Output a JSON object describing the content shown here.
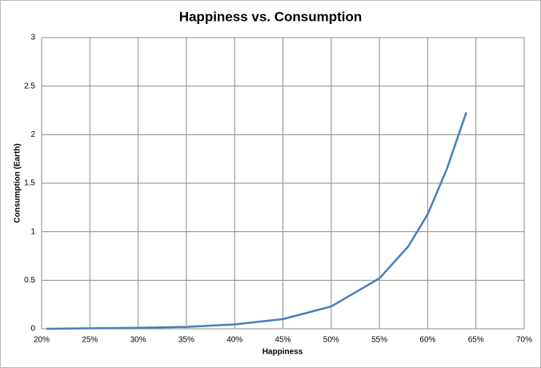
{
  "chart_data": {
    "type": "line",
    "title": "Happiness vs. Consumption",
    "x_label": "Happiness",
    "y_label": "Consumption (Earth)",
    "x": [
      20.5,
      25,
      30,
      35,
      40,
      45,
      50,
      55,
      58,
      60,
      62,
      64
    ],
    "series": [
      {
        "name": "Consumption",
        "color": "#4a7ebb",
        "values": [
          0,
          0.005,
          0.01,
          0.02,
          0.045,
          0.1,
          0.23,
          0.52,
          0.85,
          1.18,
          1.65,
          2.23
        ]
      }
    ],
    "xlim": [
      20,
      70
    ],
    "xticks": [
      {
        "value": 20,
        "label": "20%"
      },
      {
        "value": 25,
        "label": "25%"
      },
      {
        "value": 30,
        "label": "30%"
      },
      {
        "value": 35,
        "label": "35%"
      },
      {
        "value": 40,
        "label": "40%"
      },
      {
        "value": 45,
        "label": "45%"
      },
      {
        "value": 50,
        "label": "50%"
      },
      {
        "value": 55,
        "label": "55%"
      },
      {
        "value": 60,
        "label": "60%"
      },
      {
        "value": 65,
        "label": "65%"
      },
      {
        "value": 70,
        "label": "70%"
      }
    ],
    "ylim": [
      0,
      3
    ],
    "yticks": [
      0,
      0.5,
      1,
      1.5,
      2,
      2.5,
      3
    ],
    "grid": true
  }
}
